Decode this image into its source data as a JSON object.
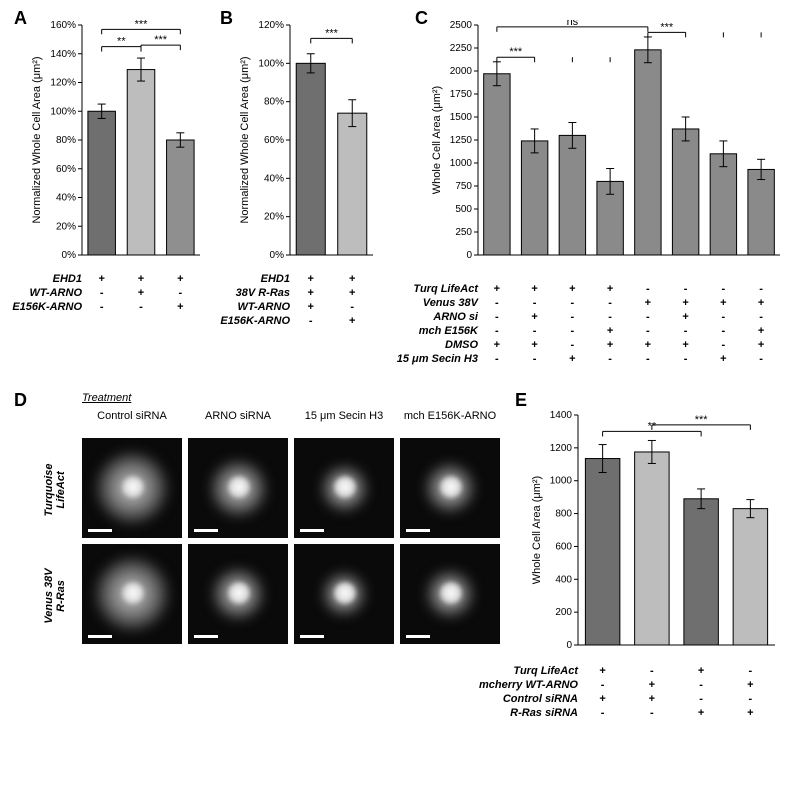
{
  "panels": {
    "A": {
      "label": "A",
      "ylabel": "Normalized Whole Cell Area (μm²)",
      "ylim": [
        0,
        160
      ],
      "ytick_step": 20,
      "ysuffix": "%",
      "bars": [
        {
          "value": 100,
          "err": 5,
          "color": "#6f6f6f"
        },
        {
          "value": 129,
          "err": 8,
          "color": "#bdbdbd"
        },
        {
          "value": 80,
          "err": 5,
          "color": "#8f8f8f"
        }
      ],
      "sig": [
        {
          "from": 0,
          "to": 1,
          "y": 145,
          "label": "**"
        },
        {
          "from": 1,
          "to": 2,
          "y": 146,
          "label": "***"
        },
        {
          "from": 0,
          "to": 2,
          "y": 157,
          "label": "***"
        }
      ],
      "conditions": [
        {
          "name": "EHD1",
          "vals": [
            "+",
            "+",
            "+"
          ]
        },
        {
          "name": "WT-ARNO",
          "vals": [
            "-",
            "+",
            "-"
          ]
        },
        {
          "name": "E156K-ARNO",
          "vals": [
            "-",
            "-",
            "+"
          ]
        }
      ]
    },
    "B": {
      "label": "B",
      "ylabel": "Normalized Whole Cell Area (μm²)",
      "ylim": [
        0,
        120
      ],
      "ytick_step": 20,
      "ysuffix": "%",
      "bars": [
        {
          "value": 100,
          "err": 5,
          "color": "#6f6f6f"
        },
        {
          "value": 74,
          "err": 7,
          "color": "#bdbdbd"
        }
      ],
      "sig": [
        {
          "from": 0,
          "to": 1,
          "y": 113,
          "label": "***"
        }
      ],
      "conditions": [
        {
          "name": "EHD1",
          "vals": [
            "+",
            "+"
          ]
        },
        {
          "name": "38V R-Ras",
          "vals": [
            "+",
            "+"
          ]
        },
        {
          "name": "WT-ARNO",
          "vals": [
            "+",
            "-"
          ]
        },
        {
          "name": "E156K-ARNO",
          "vals": [
            "-",
            "+"
          ]
        }
      ]
    },
    "C": {
      "label": "C",
      "ylabel": "Whole Cell Area (μm²)",
      "ylim": [
        0,
        2500
      ],
      "ytick_step": 250,
      "ysuffix": "",
      "bars": [
        {
          "value": 1970,
          "err": 130,
          "color": "#8a8a8a"
        },
        {
          "value": 1240,
          "err": 130,
          "color": "#8a8a8a"
        },
        {
          "value": 1300,
          "err": 140,
          "color": "#8a8a8a"
        },
        {
          "value": 800,
          "err": 140,
          "color": "#8a8a8a"
        },
        {
          "value": 2230,
          "err": 140,
          "color": "#8a8a8a"
        },
        {
          "value": 1370,
          "err": 130,
          "color": "#8a8a8a"
        },
        {
          "value": 1100,
          "err": 140,
          "color": "#8a8a8a"
        },
        {
          "value": 930,
          "err": 110,
          "color": "#8a8a8a"
        }
      ],
      "sig": [
        {
          "from": 0,
          "to": 1,
          "y": 2150,
          "label": "***",
          "sub": [
            2,
            3
          ]
        },
        {
          "from": 4,
          "to": 5,
          "y": 2420,
          "label": "***",
          "sub": [
            6,
            7
          ]
        },
        {
          "from": 0,
          "to": 4,
          "y": 2480,
          "label": "ns"
        }
      ],
      "conditions": [
        {
          "name": "Turq LifeAct",
          "vals": [
            "+",
            "+",
            "+",
            "+",
            "-",
            "-",
            "-",
            "-"
          ]
        },
        {
          "name": "Venus 38V",
          "vals": [
            "-",
            "-",
            "-",
            "-",
            "+",
            "+",
            "+",
            "+"
          ]
        },
        {
          "name": "ARNO si",
          "vals": [
            "-",
            "+",
            "-",
            "-",
            "-",
            "+",
            "-",
            "-"
          ]
        },
        {
          "name": "mch E156K",
          "vals": [
            "-",
            "-",
            "-",
            "+",
            "-",
            "-",
            "-",
            "+"
          ]
        },
        {
          "name": "DMSO",
          "vals": [
            "+",
            "+",
            "-",
            "+",
            "+",
            "+",
            "-",
            "+"
          ]
        },
        {
          "name": "15 μm Secin H3",
          "vals": [
            "-",
            "-",
            "+",
            "-",
            "-",
            "-",
            "+",
            "-"
          ]
        }
      ]
    },
    "D": {
      "label": "D",
      "treatment_label": "Treatment",
      "cols": [
        "Control siRNA",
        "ARNO siRNA",
        "15 μm Secin H3",
        "mch E156K-ARNO"
      ],
      "rows": [
        "Turquoise\nLifeAct",
        "Venus 38V\nR-Ras"
      ]
    },
    "E": {
      "label": "E",
      "ylabel": "Whole Cell Area (μm²)",
      "ylim": [
        0,
        1400
      ],
      "ytick_step": 200,
      "ysuffix": "",
      "bars": [
        {
          "value": 1135,
          "err": 85,
          "color": "#6f6f6f"
        },
        {
          "value": 1175,
          "err": 70,
          "color": "#bdbdbd"
        },
        {
          "value": 890,
          "err": 60,
          "color": "#6f6f6f"
        },
        {
          "value": 830,
          "err": 55,
          "color": "#bdbdbd"
        }
      ],
      "sig": [
        {
          "from": 0,
          "to": 2,
          "y": 1300,
          "label": "**"
        },
        {
          "from": 1,
          "to": 3,
          "y": 1340,
          "label": "***"
        }
      ],
      "conditions": [
        {
          "name": "Turq LifeAct",
          "vals": [
            "+",
            "-",
            "+",
            "-"
          ]
        },
        {
          "name": "mcherry WT-ARNO",
          "vals": [
            "-",
            "+",
            "-",
            "+"
          ]
        },
        {
          "name": "Control siRNA",
          "vals": [
            "+",
            "+",
            "-",
            "-"
          ]
        },
        {
          "name": "R-Ras siRNA",
          "vals": [
            "-",
            "-",
            "+",
            "+"
          ]
        }
      ]
    }
  },
  "style": {
    "axis_color": "#000000",
    "bar_stroke": "#000000",
    "err_color": "#000000",
    "tick_font": 10,
    "label_font": 11
  }
}
